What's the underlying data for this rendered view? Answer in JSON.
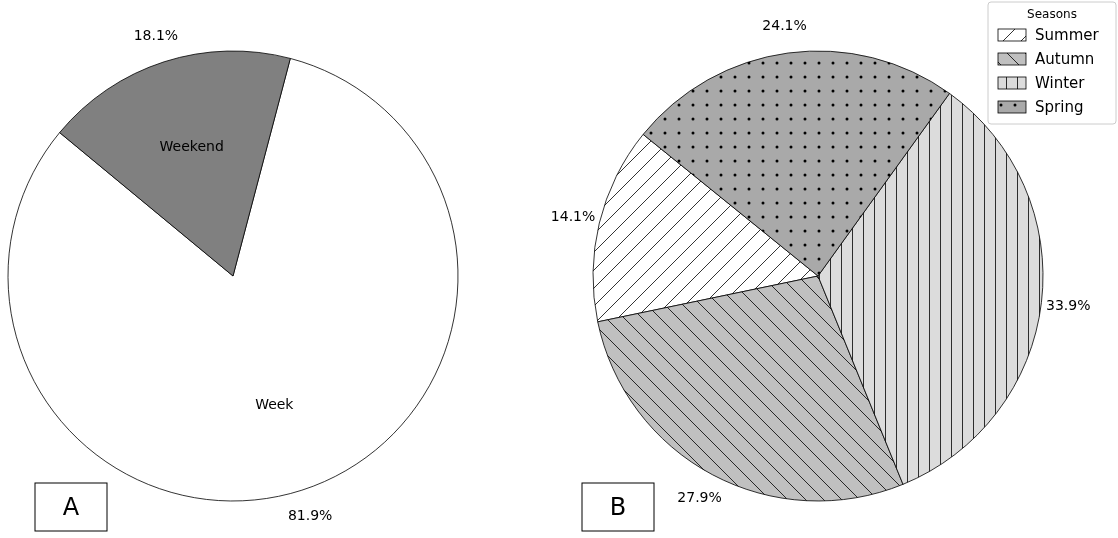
{
  "chart_data": [
    {
      "type": "pie",
      "categories": [
        "Week",
        "Weekend"
      ],
      "values": [
        81.9,
        18.1
      ],
      "colors": [
        "#ffffff",
        "#808080"
      ],
      "value_labels": [
        "81.9%",
        "18.1%"
      ],
      "annotations": [
        "A"
      ]
    },
    {
      "type": "pie",
      "categories": [
        "Summer",
        "Autumn",
        "Winter",
        "Spring"
      ],
      "values": [
        14.1,
        27.9,
        33.9,
        24.1
      ],
      "colors": [
        "#ffffff",
        "#c0c0c0",
        "#dcdcdc",
        "#a9a9a9"
      ],
      "value_labels": [
        "14.1%",
        "27.9%",
        "33.9%",
        "24.1%"
      ],
      "legend": "top right",
      "legend_title": "Seasons",
      "annotations": [
        "B"
      ]
    }
  ]
}
